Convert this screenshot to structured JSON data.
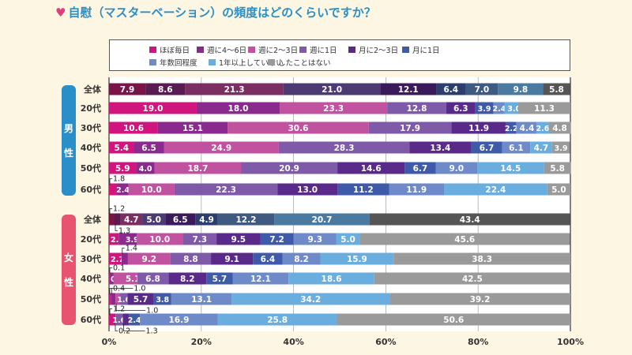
{
  "title": "自慰（マスターベーション）の頻度はどのくらいですか？",
  "colors": {
    "heart": "#e0407a",
    "male_badge": "#2a8fc8",
    "female_badge": "#e8546f"
  },
  "chart_data": {
    "type": "bar",
    "orientation": "horizontal",
    "stacked": true,
    "title": "自慰（マスターベーション）の頻度はどのくらいですか？",
    "xlim": [
      0,
      100
    ],
    "xticks": [
      "0%",
      "20%",
      "40%",
      "60%",
      "80%",
      "100%"
    ],
    "grid": true,
    "legend": "top",
    "series_names": [
      "ほぼ毎日",
      "週に4～6日",
      "週に2～3日",
      "週に1日",
      "月に2～3日",
      "月に1日",
      "年数回程度",
      "1年以上していない",
      "したことはない"
    ],
    "series_colors": [
      "#d0157f",
      "#8b2a8e",
      "#c052a0",
      "#7e5aa8",
      "#5a2a8a",
      "#3e5aa8",
      "#6f8ac8",
      "#6aaee0",
      "#9a9a9a"
    ],
    "overall_colors": [
      "#7a1448",
      "#5a1a52",
      "#7a2e62",
      "#4c3a72",
      "#3a1a5a",
      "#2c3f6c",
      "#3e5a80",
      "#4a7aa0",
      "#555555"
    ],
    "groups": [
      {
        "label": "男性",
        "rows": [
          {
            "label": "全体",
            "values": [
              7.9,
              8.6,
              21.3,
              21.0,
              12.1,
              6.4,
              7.0,
              9.8,
              5.8
            ]
          },
          {
            "label": "20代",
            "values": [
              19.0,
              18.0,
              23.3,
              12.8,
              6.3,
              3.9,
              2.4,
              3.0,
              11.3
            ]
          },
          {
            "label": "30代",
            "values": [
              10.6,
              15.1,
              30.6,
              17.9,
              11.9,
              2.2,
              4.4,
              2.6,
              4.8
            ]
          },
          {
            "label": "40代",
            "values": [
              5.4,
              6.5,
              24.9,
              28.3,
              13.4,
              6.7,
              6.1,
              4.7,
              3.9
            ]
          },
          {
            "label": "50代",
            "values": [
              5.9,
              4.0,
              18.7,
              20.9,
              14.6,
              6.7,
              9.0,
              14.5,
              5.8
            ]
          },
          {
            "label": "60代",
            "values": [
              1.8,
              2.4,
              10.0,
              22.3,
              13.0,
              11.2,
              11.9,
              22.4,
              5.0
            ]
          }
        ]
      },
      {
        "label": "女性",
        "rows": [
          {
            "label": "全体",
            "values": [
              1.2,
              1.3,
              4.7,
              5.0,
              6.5,
              4.9,
              12.2,
              20.7,
              43.4
            ]
          },
          {
            "label": "20代",
            "values": [
              2.1,
              3.9,
              10.0,
              7.3,
              9.5,
              7.2,
              9.3,
              5.0,
              45.6
            ]
          },
          {
            "label": "30代",
            "values": [
              2.7,
              1.4,
              9.2,
              8.8,
              9.1,
              6.4,
              8.2,
              15.9,
              38.3
            ]
          },
          {
            "label": "40代",
            "values": [
              0.1,
              0.9,
              5.1,
              6.8,
              8.2,
              5.7,
              12.1,
              18.6,
              42.5
            ]
          },
          {
            "label": "50代",
            "values": [
              0.4,
              1.0,
              1.0,
              1.6,
              5.7,
              3.8,
              13.1,
              34.2,
              39.2
            ]
          },
          {
            "label": "60代",
            "values": [
              1.2,
              0.2,
              0,
              1.6,
              1.3,
              2.4,
              16.9,
              25.8,
              50.6
            ]
          }
        ]
      }
    ]
  }
}
